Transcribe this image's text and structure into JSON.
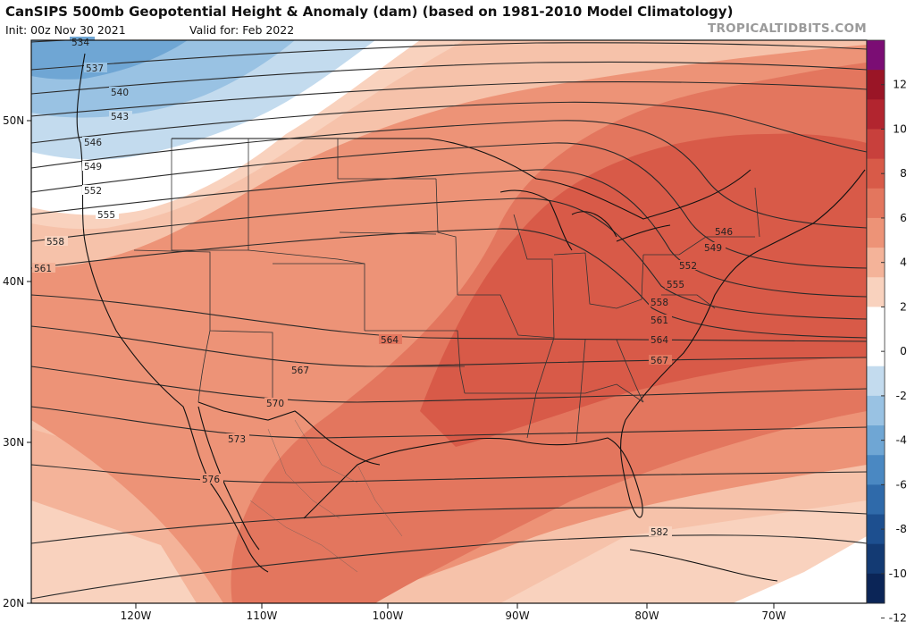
{
  "header": {
    "title": "CanSIPS 500mb Geopotential Height & Anomaly (dam) (based on 1981-2010 Model Climatology)",
    "init": "Init: 00z Nov 30 2021",
    "valid": "Valid for: Feb 2022",
    "credit": "TROPICALTIDBITS.COM"
  },
  "axes": {
    "lat_labels": [
      "50N",
      "40N",
      "30N",
      "20N"
    ],
    "lon_labels": [
      "120W",
      "110W",
      "100W",
      "90W",
      "80W",
      "70W"
    ]
  },
  "colorbar": {
    "labels": [
      "12",
      "10",
      "8",
      "6",
      "4",
      "2",
      "0",
      "-2",
      "-4",
      "-6",
      "-8",
      "-10",
      "-12"
    ],
    "colors": [
      "#7b0d74",
      "#9a1526",
      "#b2252f",
      "#c8403c",
      "#d85a48",
      "#e3765e",
      "#ed9377",
      "#f4b399",
      "#f9d2be",
      "#ffffff",
      "#ffffff",
      "#c3dbee",
      "#99c2e3",
      "#6fa6d4",
      "#4a88c2",
      "#2f6aaa",
      "#1d4f8f",
      "#133a73",
      "#0b2557"
    ]
  },
  "contours": {
    "labels": [
      "534",
      "537",
      "540",
      "543",
      "546",
      "549",
      "552",
      "555",
      "558",
      "561",
      "564",
      "567",
      "570",
      "573",
      "576",
      "546",
      "549",
      "552",
      "555",
      "558",
      "561",
      "564",
      "567",
      "582"
    ]
  }
}
